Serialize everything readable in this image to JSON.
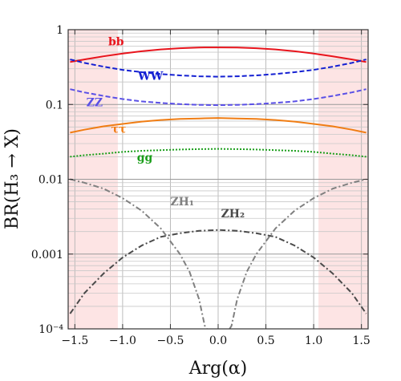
{
  "chart_data": {
    "type": "line",
    "title": "",
    "xlabel": "Arg(α)",
    "ylabel": "BR(H₃ → X)",
    "xlim": [
      -1.57,
      1.57
    ],
    "ylim": [
      0.0001,
      1
    ],
    "yscale": "log",
    "grid": true,
    "x_ticks": [
      -1.5,
      -1.0,
      -0.5,
      0.0,
      0.5,
      1.0,
      1.5
    ],
    "x_tick_labels": [
      "−1.5",
      "−1.0",
      "−0.5",
      "0.0",
      "0.5",
      "1.0",
      "1.5"
    ],
    "y_ticks": [
      0.0001,
      0.001,
      0.01,
      0.1,
      1
    ],
    "y_tick_labels": [
      "10⁻⁴",
      "0.001",
      "0.01",
      "0.1",
      "1"
    ],
    "shaded_regions": [
      {
        "x": [
          -1.57,
          -1.05
        ],
        "color": "#fde4e4"
      },
      {
        "x": [
          1.05,
          1.57
        ],
        "color": "#fde4e4"
      }
    ],
    "x": [
      -1.55,
      -1.4,
      -1.2,
      -1.0,
      -0.8,
      -0.6,
      -0.4,
      -0.2,
      0.0,
      0.2,
      0.4,
      0.6,
      0.8,
      1.0,
      1.2,
      1.4,
      1.55
    ],
    "series": [
      {
        "name": "bb",
        "color": "#e8141c",
        "dash": "",
        "width": 2,
        "values": [
          0.37,
          0.4,
          0.44,
          0.48,
          0.515,
          0.545,
          0.565,
          0.578,
          0.58,
          0.578,
          0.565,
          0.545,
          0.515,
          0.48,
          0.44,
          0.4,
          0.37
        ]
      },
      {
        "name": "WW",
        "color": "#1420d2",
        "dash": "6,3",
        "width": 2,
        "values": [
          0.4,
          0.36,
          0.32,
          0.29,
          0.27,
          0.255,
          0.245,
          0.238,
          0.235,
          0.238,
          0.245,
          0.255,
          0.27,
          0.29,
          0.32,
          0.36,
          0.4
        ]
      },
      {
        "name": "ZZ",
        "color": "#5a50e6",
        "dash": "6,3",
        "width": 2,
        "values": [
          0.16,
          0.145,
          0.13,
          0.118,
          0.11,
          0.105,
          0.101,
          0.099,
          0.098,
          0.099,
          0.101,
          0.105,
          0.11,
          0.118,
          0.13,
          0.145,
          0.16
        ]
      },
      {
        "name": "ττ",
        "color": "#f07d14",
        "dash": "",
        "width": 2,
        "values": [
          0.042,
          0.046,
          0.051,
          0.055,
          0.059,
          0.062,
          0.064,
          0.065,
          0.066,
          0.065,
          0.064,
          0.062,
          0.059,
          0.055,
          0.051,
          0.046,
          0.042
        ]
      },
      {
        "name": "gg",
        "color": "#1a9e1a",
        "dash": "2,2",
        "width": 2,
        "values": [
          0.02,
          0.021,
          0.022,
          0.0232,
          0.024,
          0.0245,
          0.025,
          0.0253,
          0.0255,
          0.0253,
          0.025,
          0.0245,
          0.024,
          0.0232,
          0.022,
          0.021,
          0.02
        ]
      },
      {
        "name": "ZH₂",
        "color": "#4a4a4a",
        "dash": "7,3,2,3",
        "width": 2,
        "values": [
          0.00016,
          0.0003,
          0.00055,
          0.0009,
          0.0013,
          0.0017,
          0.0019,
          0.00205,
          0.0021,
          0.00205,
          0.0019,
          0.0017,
          0.0013,
          0.0009,
          0.00055,
          0.0003,
          0.00016
        ]
      }
    ],
    "extra_series": [
      {
        "name": "ZH₁",
        "color": "#808080",
        "dash": "7,3,2,3",
        "width": 2,
        "x": [
          -1.55,
          -1.4,
          -1.2,
          -1.0,
          -0.8,
          -0.6,
          -0.4,
          -0.3,
          -0.2,
          -0.14,
          -0.12
        ],
        "values": [
          0.01,
          0.009,
          0.0075,
          0.0056,
          0.0038,
          0.0022,
          0.001,
          0.00058,
          0.00025,
          0.00011,
          0.0001
        ]
      },
      {
        "name": "ZH₁",
        "color": "#808080",
        "dash": "7,3,2,3",
        "width": 2,
        "x": [
          0.12,
          0.14,
          0.2,
          0.3,
          0.4,
          0.6,
          0.8,
          1.0,
          1.2,
          1.4,
          1.55
        ],
        "values": [
          0.0001,
          0.00011,
          0.00025,
          0.00058,
          0.001,
          0.0022,
          0.0038,
          0.0056,
          0.0075,
          0.009,
          0.01
        ]
      }
    ],
    "labels": [
      {
        "text": "bb",
        "x": -1.15,
        "y": 0.62,
        "color": "#e8141c"
      },
      {
        "text": "WW",
        "x": -0.84,
        "y": 0.215,
        "color": "#1420d2"
      },
      {
        "text": "ZZ",
        "x": -1.38,
        "y": 0.095,
        "color": "#5a50e6"
      },
      {
        "text": "ττ",
        "x": -1.12,
        "y": 0.042,
        "color": "#f07d14"
      },
      {
        "text": "gg",
        "x": -0.85,
        "y": 0.0175,
        "color": "#1a9e1a"
      },
      {
        "text": "ZH₁",
        "x": -0.5,
        "y": 0.0045,
        "color": "#808080"
      },
      {
        "text": "ZH₂",
        "x": 0.03,
        "y": 0.0031,
        "color": "#4a4a4a"
      }
    ]
  }
}
